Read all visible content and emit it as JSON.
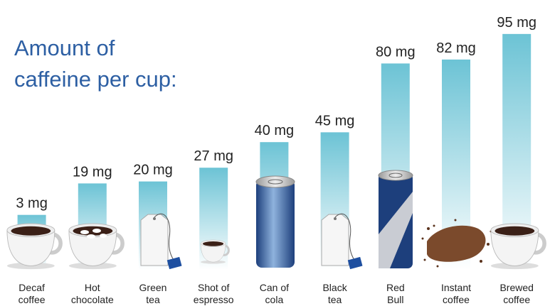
{
  "chart_data": {
    "type": "bar",
    "title": "Amount of caffeine per cup:",
    "categories": [
      "Decaf coffee",
      "Hot chocolate",
      "Green tea",
      "Shot of espresso",
      "Can of cola",
      "Black tea",
      "Red Bull",
      "Instant coffee",
      "Brewed coffee"
    ],
    "values": [
      3,
      19,
      20,
      27,
      40,
      45,
      80,
      82,
      95
    ],
    "value_labels": [
      "3 mg",
      "19 mg",
      "20 mg",
      "27 mg",
      "40 mg",
      "45 mg",
      "80 mg",
      "82 mg",
      "95 mg"
    ],
    "color": "#6cc3d5",
    "ylim": [
      0,
      100
    ]
  }
}
